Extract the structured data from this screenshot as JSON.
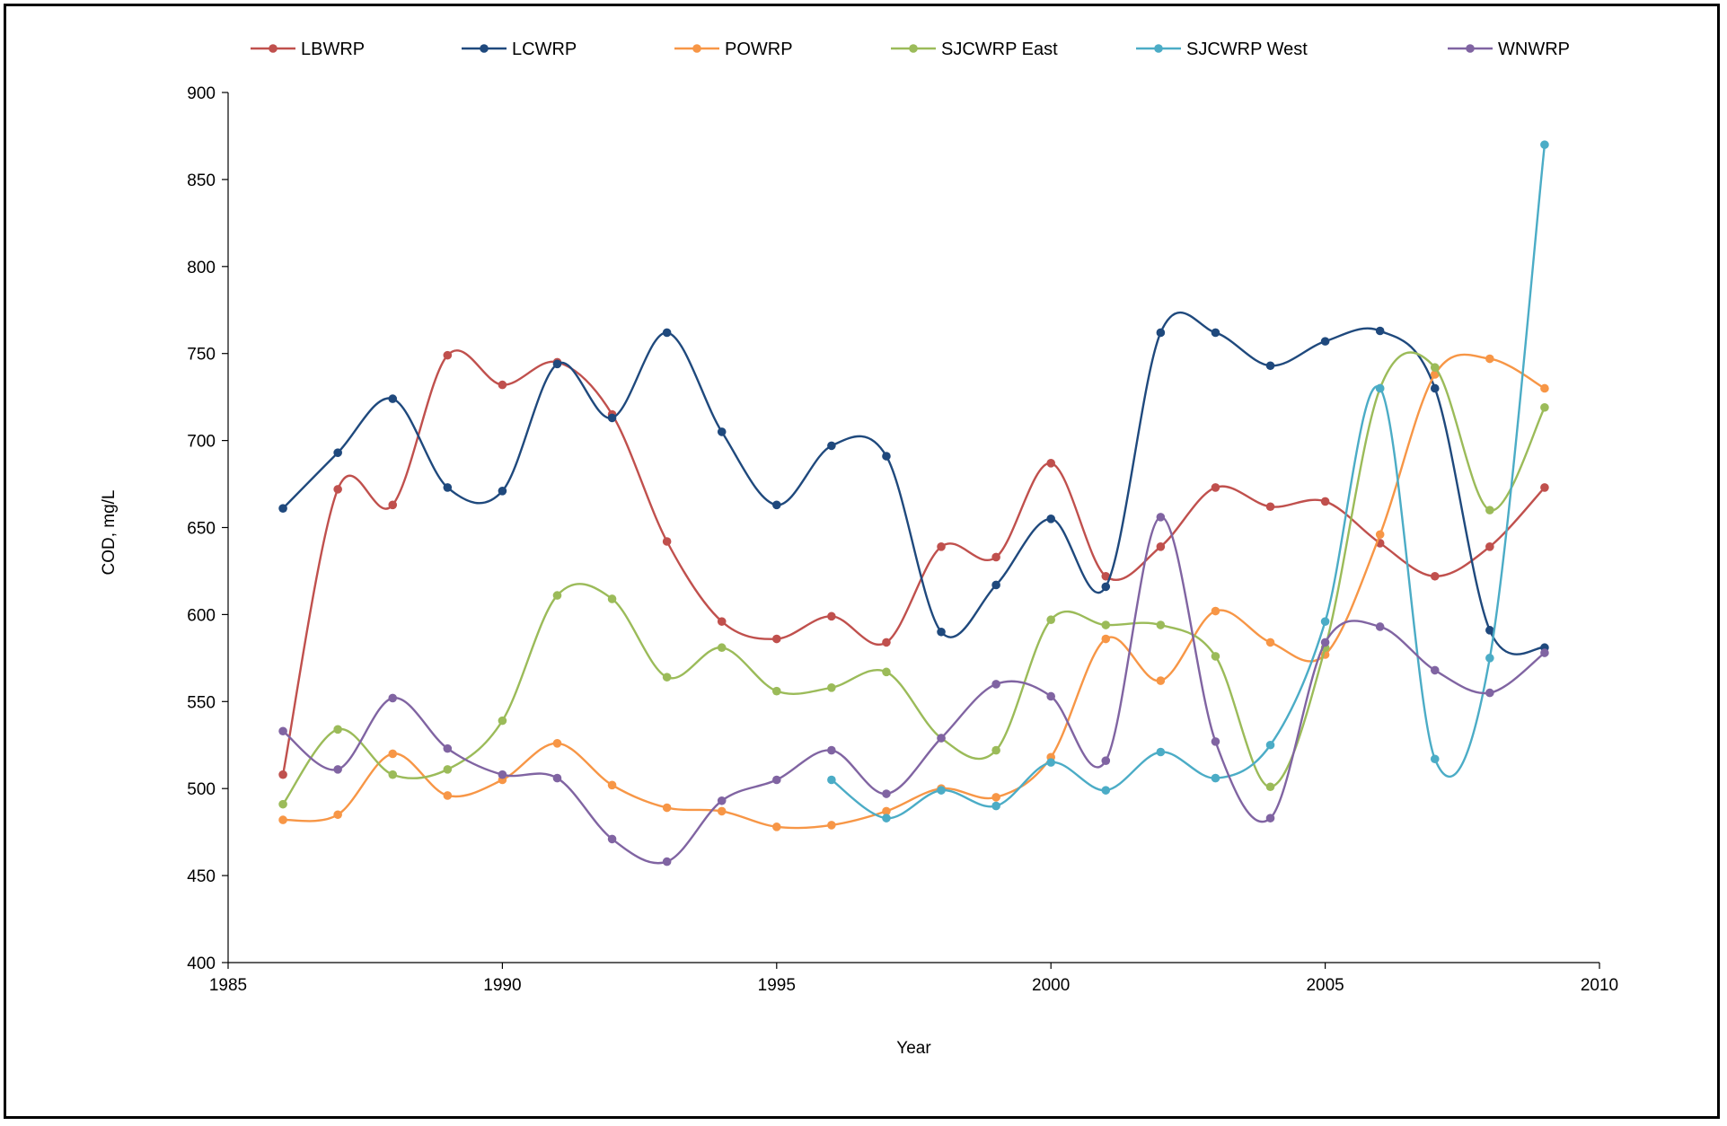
{
  "chart_data": {
    "type": "line",
    "title": "",
    "xlabel": "Year",
    "ylabel": "COD, mg/L",
    "xlim": [
      1985,
      2010
    ],
    "ylim": [
      400,
      900
    ],
    "xticks": [
      1985,
      1990,
      1995,
      2000,
      2005,
      2010
    ],
    "yticks": [
      400,
      450,
      500,
      550,
      600,
      650,
      700,
      750,
      800,
      850,
      900
    ],
    "xtick_labels": [
      "1985",
      "1990",
      "1995",
      "2000",
      "2005",
      "2010"
    ],
    "ytick_labels": [
      "400",
      "450",
      "500",
      "550",
      "600",
      "650",
      "700",
      "750",
      "800",
      "850",
      "900"
    ],
    "grid": false,
    "legend_position": "top",
    "series": [
      {
        "name": "LBWRP",
        "color": "#c0504d",
        "x": [
          1986,
          1987,
          1988,
          1989,
          1990,
          1991,
          1992,
          1993,
          1994,
          1995,
          1996,
          1997,
          1998,
          1999,
          2000,
          2001,
          2002,
          2003,
          2004,
          2005,
          2006,
          2007,
          2008,
          2009
        ],
        "values": [
          508,
          672,
          663,
          749,
          732,
          745,
          715,
          642,
          596,
          586,
          599,
          584,
          639,
          633,
          687,
          622,
          639,
          673,
          662,
          665,
          641,
          622,
          639,
          673
        ]
      },
      {
        "name": "LCWRP",
        "color": "#1f497d",
        "x": [
          1986,
          1987,
          1988,
          1989,
          1990,
          1991,
          1992,
          1993,
          1994,
          1995,
          1996,
          1997,
          1998,
          1999,
          2000,
          2001,
          2002,
          2003,
          2004,
          2005,
          2006,
          2007,
          2008,
          2009
        ],
        "values": [
          661,
          693,
          724,
          673,
          671,
          744,
          713,
          762,
          705,
          663,
          697,
          691,
          590,
          617,
          655,
          616,
          762,
          762,
          743,
          757,
          763,
          730,
          591,
          581
        ]
      },
      {
        "name": "POWRP",
        "color": "#f79646",
        "x": [
          1986,
          1987,
          1988,
          1989,
          1990,
          1991,
          1992,
          1993,
          1994,
          1995,
          1996,
          1997,
          1998,
          1999,
          2000,
          2001,
          2002,
          2003,
          2004,
          2005,
          2006,
          2007,
          2008,
          2009
        ],
        "values": [
          482,
          485,
          520,
          496,
          505,
          526,
          502,
          489,
          487,
          478,
          479,
          487,
          500,
          495,
          518,
          586,
          562,
          602,
          584,
          577,
          646,
          738,
          747,
          730
        ]
      },
      {
        "name": "SJCWRP East",
        "color": "#9bbb59",
        "x": [
          1986,
          1987,
          1988,
          1989,
          1990,
          1991,
          1992,
          1993,
          1994,
          1995,
          1996,
          1997,
          1998,
          1999,
          2000,
          2001,
          2002,
          2003,
          2004,
          2005,
          2006,
          2007,
          2008,
          2009
        ],
        "values": [
          491,
          534,
          508,
          511,
          539,
          611,
          609,
          564,
          581,
          556,
          558,
          567,
          529,
          522,
          597,
          594,
          594,
          576,
          501,
          581,
          730,
          742,
          660,
          719
        ]
      },
      {
        "name": "SJCWRP West",
        "color": "#4bacc6",
        "x": [
          1996,
          1997,
          1998,
          1999,
          2000,
          2001,
          2002,
          2003,
          2004,
          2005,
          2006,
          2007,
          2008,
          2009
        ],
        "values": [
          505,
          483,
          499,
          490,
          515,
          499,
          521,
          506,
          525,
          596,
          730,
          517,
          575,
          870
        ]
      },
      {
        "name": "WNWRP",
        "color": "#8064a2",
        "x": [
          1986,
          1987,
          1988,
          1989,
          1990,
          1991,
          1992,
          1993,
          1994,
          1995,
          1996,
          1997,
          1998,
          1999,
          2000,
          2001,
          2002,
          2003,
          2004,
          2005,
          2006,
          2007,
          2008,
          2009
        ],
        "values": [
          533,
          511,
          552,
          523,
          508,
          506,
          471,
          458,
          493,
          505,
          522,
          497,
          529,
          560,
          553,
          516,
          656,
          527,
          483,
          584,
          593,
          568,
          555,
          578
        ]
      }
    ]
  }
}
